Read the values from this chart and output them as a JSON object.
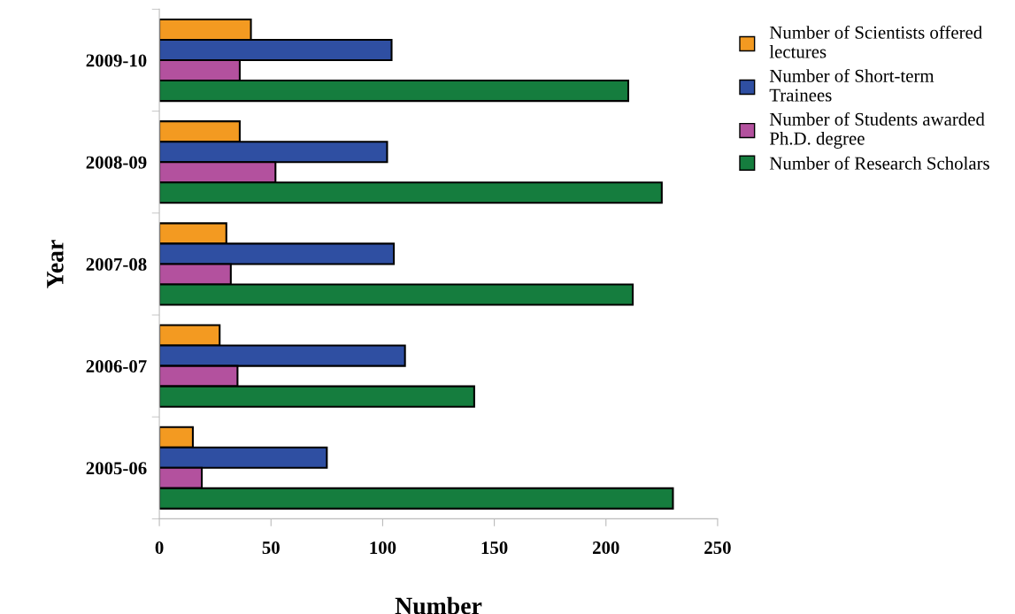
{
  "chart_data": {
    "type": "bar",
    "orientation": "horizontal",
    "xlabel": "Number",
    "ylabel": "Year",
    "categories": [
      "2009-10",
      "2008-09",
      "2007-08",
      "2006-07",
      "2005-06"
    ],
    "series": [
      {
        "name": "Number of Scientists offered lectures",
        "color": "#f39a21",
        "values": [
          41,
          36,
          30,
          27,
          15
        ]
      },
      {
        "name": "Number of Short-term Trainees",
        "color": "#2f4fa2",
        "values": [
          104,
          102,
          105,
          110,
          75
        ]
      },
      {
        "name": "Number of Students awarded Ph.D. degree",
        "color": "#b3519e",
        "values": [
          36,
          52,
          32,
          35,
          19
        ]
      },
      {
        "name": "Number of Research Scholars",
        "color": "#157d3e",
        "values": [
          210,
          225,
          212,
          141,
          230
        ]
      }
    ],
    "xlim": [
      0,
      250
    ],
    "xticks": [
      0,
      50,
      100,
      150,
      200,
      250
    ],
    "grid": false,
    "legend": "top right"
  }
}
